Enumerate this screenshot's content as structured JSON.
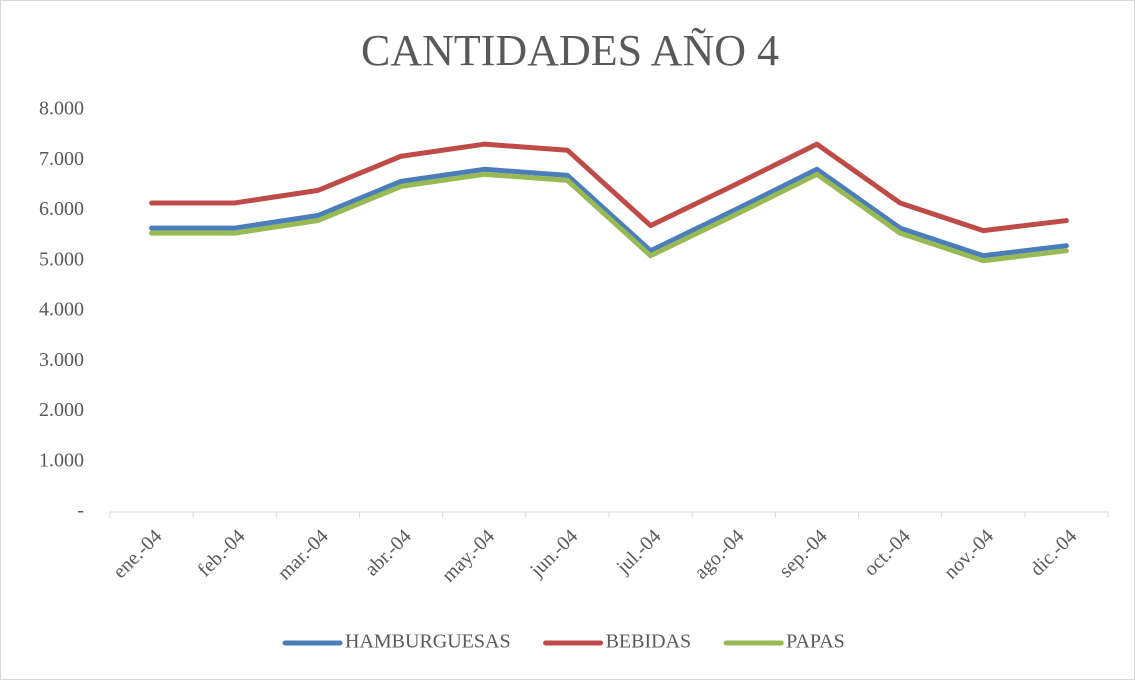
{
  "chart_data": {
    "type": "line",
    "title": "CANTIDADES AÑO 4",
    "categories": [
      "ene.-04",
      "feb.-04",
      "mar.-04",
      "abr.-04",
      "may.-04",
      "jun.-04",
      "jul.-04",
      "ago.-04",
      "sep.-04",
      "oct.-04",
      "nov.-04",
      "dic.-04"
    ],
    "series": [
      {
        "name": "HAMBURGUESAS",
        "color": "#4a7ebb",
        "values": [
          5650,
          5650,
          5900,
          6580,
          6820,
          6700,
          5200,
          6000,
          6820,
          5650,
          5100,
          5300
        ]
      },
      {
        "name": "BEBIDAS",
        "color": "#be4b48",
        "values": [
          6150,
          6150,
          6400,
          7080,
          7320,
          7200,
          5700,
          6500,
          7320,
          6150,
          5600,
          5800
        ]
      },
      {
        "name": "PAPAS",
        "color": "#98b954",
        "values": [
          5550,
          5550,
          5800,
          6480,
          6720,
          6600,
          5100,
          5900,
          6720,
          5550,
          5000,
          5200
        ]
      }
    ],
    "ylim": [
      0,
      8000
    ],
    "yticks": [
      {
        "value": 0,
        "label": "-"
      },
      {
        "value": 1000,
        "label": "1.000"
      },
      {
        "value": 2000,
        "label": "2.000"
      },
      {
        "value": 3000,
        "label": "3.000"
      },
      {
        "value": 4000,
        "label": "4.000"
      },
      {
        "value": 5000,
        "label": "5.000"
      },
      {
        "value": 6000,
        "label": "6.000"
      },
      {
        "value": 7000,
        "label": "7.000"
      },
      {
        "value": 8000,
        "label": "8.000"
      }
    ],
    "grid": false,
    "legend": "bottom"
  }
}
